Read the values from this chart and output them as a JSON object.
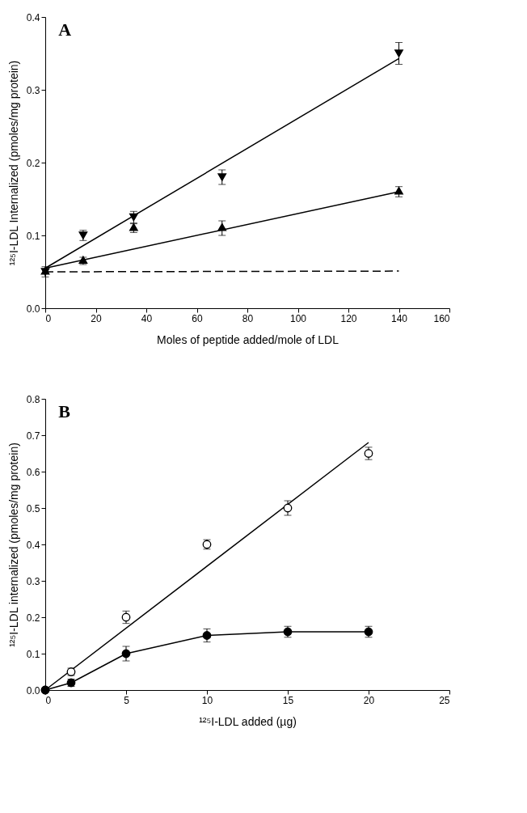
{
  "chart_data": [
    {
      "type": "scatter",
      "title": "A",
      "xlabel": "Moles of peptide added/mole of LDL",
      "ylabel": "¹²⁵I-LDL Internalized (pmoles/mg protein)",
      "xlim": [
        0,
        160
      ],
      "xticks": [
        0,
        20,
        40,
        60,
        80,
        100,
        120,
        140,
        160
      ],
      "ylim": [
        0,
        0.4
      ],
      "yticks": [
        {
          "value": 0,
          "label": "0.0"
        },
        0.1,
        0.2,
        0.3,
        0.4
      ],
      "grid": false,
      "series": [
        {
          "marker": "triangle-down",
          "color": "#000000",
          "x": [
            0,
            15,
            35,
            70,
            140
          ],
          "values": [
            0.05,
            0.1,
            0.125,
            0.18,
            0.35
          ],
          "errors": [
            0.007,
            0.007,
            0.008,
            0.01,
            0.015
          ]
        },
        {
          "marker": "triangle",
          "color": "#000000",
          "x": [
            0,
            15,
            35,
            70,
            140
          ],
          "values": [
            0.05,
            0.065,
            0.11,
            0.11,
            0.16
          ],
          "errors": [
            null,
            0.005,
            0.006,
            0.01,
            0.007
          ]
        },
        {
          "type": "line",
          "line_style": "solid",
          "color": "#000000",
          "x": [
            0,
            140
          ],
          "values": [
            0.055,
            0.343
          ]
        },
        {
          "type": "line",
          "line_style": "solid",
          "color": "#000000",
          "x": [
            0,
            140
          ],
          "values": [
            0.055,
            0.16
          ]
        },
        {
          "type": "line",
          "line_style": "dashed",
          "color": "#000000",
          "x": [
            0,
            140
          ],
          "values": [
            0.05,
            0.051
          ]
        }
      ]
    },
    {
      "type": "scatter",
      "title": "B",
      "xlabel": "¹²⁵I-LDL added (µg)",
      "ylabel": "¹²⁵I-LDL internalized (pmoles/mg protein)",
      "xlim": [
        0,
        25
      ],
      "xticks": [
        0,
        5,
        10,
        15,
        20,
        25
      ],
      "ylim": [
        0,
        0.8
      ],
      "yticks": [
        {
          "value": 0,
          "label": "0.0"
        },
        0.1,
        0.2,
        0.3,
        0.4,
        0.5,
        0.6,
        0.7,
        0.8
      ],
      "grid": false,
      "series": [
        {
          "type": "line",
          "line_style": "solid",
          "color": "#000000",
          "x": [
            0,
            20
          ],
          "values": [
            0,
            0.68
          ]
        },
        {
          "marker": "circle",
          "color": "#ffffff",
          "x": [
            0,
            1.6,
            5,
            10,
            15,
            20
          ],
          "values": [
            0,
            0.05,
            0.2,
            0.4,
            0.5,
            0.65
          ],
          "errors": [
            null,
            0.01,
            0.017,
            0.013,
            0.02,
            0.017
          ]
        },
        {
          "type": "line",
          "marker": "circle",
          "line_style": "solid",
          "color": "#000000",
          "x": [
            0,
            1.6,
            5,
            10,
            15,
            20
          ],
          "values": [
            0,
            0.02,
            0.1,
            0.15,
            0.16,
            0.16
          ],
          "errors": [
            null,
            0.01,
            0.02,
            0.018,
            0.015,
            0.015
          ]
        }
      ]
    }
  ]
}
